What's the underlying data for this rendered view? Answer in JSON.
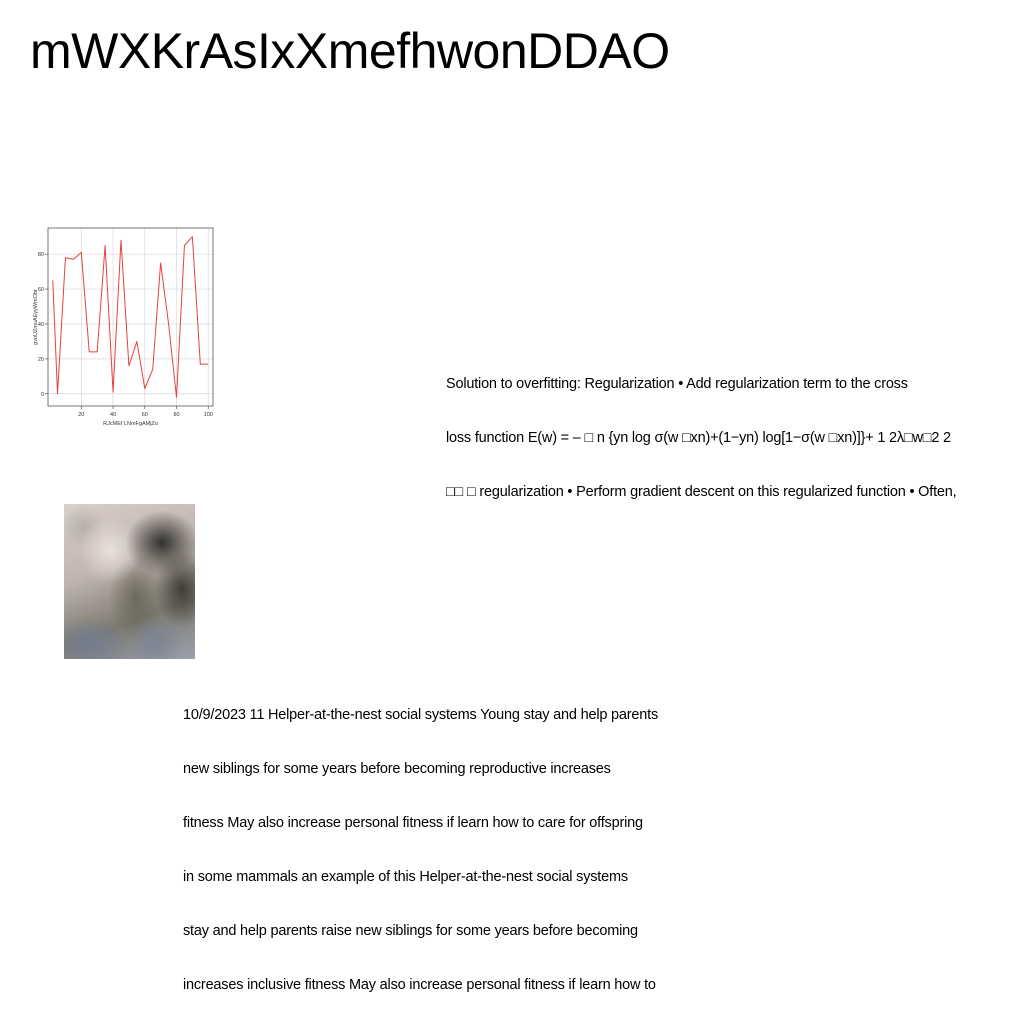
{
  "page": {
    "title": "mWXKrAsIxXmefhwonDDAO"
  },
  "chart_data": {
    "type": "line",
    "xlabel": "RJcMEf LNmFgAMjZu",
    "ylabel": "gvoUZmuAEyyWmObr",
    "x": [
      2,
      5,
      10,
      15,
      20,
      25,
      30,
      35,
      40,
      45,
      50,
      55,
      60,
      65,
      70,
      75,
      80,
      85,
      90,
      95,
      100
    ],
    "series": [
      {
        "values": [
          65,
          0,
          78,
          77,
          81,
          24,
          24,
          85,
          1,
          88,
          16,
          30,
          3,
          14,
          75,
          40,
          -2,
          85,
          90,
          17,
          17
        ],
        "color": "#e8413c"
      }
    ],
    "xticks": [
      20,
      40,
      60,
      80,
      100
    ],
    "yticks": [
      0,
      20,
      40,
      60,
      80
    ],
    "xlim": [
      -1,
      103
    ],
    "ylim": [
      -7,
      95
    ],
    "grid": true
  },
  "text_right": {
    "lines": [
      "Solution to overfitting: Regularization • Add regularization term to the cross",
      "loss function E(w) = – □ n {yn log σ(w □xn)+(1−yn) log[1−σ(w □xn)]}+ 1 2λ□w□2 2",
      "□□ □ regularization • Perform gradient descent on this regularized function • Often,"
    ]
  },
  "text_bottom": {
    "lines": [
      "10/9/2023 11 Helper-at-the-nest social systems Young stay and help parents",
      "new siblings for some years before becoming reproductive increases",
      "fitness May also increase personal fitness if learn how to care for offspring",
      "in some mammals an example of this Helper-at-the-nest social systems",
      "stay and help parents raise new siblings for some years before becoming",
      "increases inclusive fitness May also increase personal fitness if learn how to"
    ]
  }
}
